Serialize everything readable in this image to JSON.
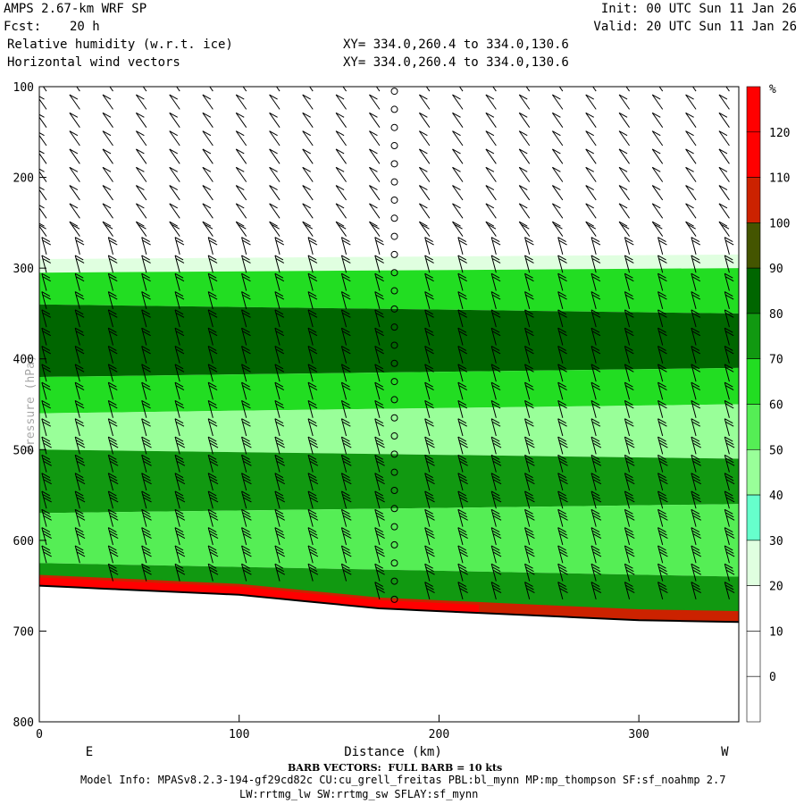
{
  "header": {
    "model": "AMPS 2.67-km WRF SP",
    "fcst_label": "Fcst:",
    "fcst_value": "20 h",
    "field1": "Relative humidity (w.r.t. ice)",
    "field2": "Horizontal wind vectors",
    "init": "Init: 00 UTC Sun 11 Jan 26",
    "valid": "Valid: 20 UTC Sun 11 Jan 26",
    "xy1": "XY= 334.0,260.4 to 334.0,130.6",
    "xy2": "XY= 334.0,260.4 to 334.0,130.6"
  },
  "footer": {
    "barb_note": "BARB VECTORS:  FULL BARB = 10 kts",
    "model_info": "Model Info: MPASv8.2.3-194-gf29cd82c CU:cu_grell_freitas PBL:bl_mynn MP:mp_thompson SF:sf_noahmp 2.7",
    "model_info2": "LW:rrtmg_lw SW:rrtmg_sw SFLAY:sf_mynn"
  },
  "chart_data": {
    "type": "heatmap",
    "title": "Relative humidity (w.r.t. ice) and Horizontal wind vectors",
    "xlabel": "Distance (km)",
    "ylabel": "Pressure (hPa)",
    "x_range": [
      0,
      350
    ],
    "y_range": [
      100,
      800
    ],
    "x_ticks": [
      0,
      100,
      200,
      300
    ],
    "y_ticks": [
      100,
      200,
      300,
      400,
      500,
      600,
      700,
      800
    ],
    "x_end_labels": {
      "left": "E",
      "right": "W"
    },
    "colorbar": {
      "unit": "%",
      "levels": [
        0,
        10,
        20,
        30,
        40,
        50,
        60,
        70,
        80,
        90,
        100,
        110,
        120
      ],
      "colors": [
        "#ffffff",
        "#ffffff",
        "#ffffff",
        "#e0ffe0",
        "#66ffcc",
        "#99ff99",
        "#55ee55",
        "#22dd22",
        "#119911",
        "#006600",
        "#445500",
        "#cc2200",
        "#ff0000"
      ]
    },
    "layers": [
      {
        "p_top_left": 290,
        "p_top_right": 285,
        "rh_class": 30
      },
      {
        "p_top_left": 305,
        "p_top_right": 300,
        "rh_class": 70
      },
      {
        "p_top_left": 340,
        "p_top_right": 350,
        "rh_class": 90
      },
      {
        "p_top_left": 420,
        "p_top_right": 410,
        "rh_class": 70
      },
      {
        "p_top_left": 460,
        "p_top_right": 450,
        "rh_class": 50
      },
      {
        "p_top_left": 500,
        "p_top_right": 510,
        "rh_class": 80
      },
      {
        "p_top_left": 570,
        "p_top_right": 560,
        "rh_class": 60
      },
      {
        "p_top_left": 625,
        "p_top_right": 640,
        "rh_class": 80
      }
    ],
    "surface_pressure": {
      "x": [
        0,
        100,
        170,
        220,
        300,
        350
      ],
      "p": [
        650,
        660,
        675,
        680,
        688,
        690
      ]
    },
    "barb_columns_km": [
      0,
      16.7,
      33.3,
      50,
      66.7,
      83.3,
      100,
      116.7,
      133.3,
      150,
      166.7,
      175,
      191.7,
      208.3,
      225,
      241.7,
      258.3,
      275,
      291.7,
      308.3,
      325,
      341.7
    ]
  }
}
